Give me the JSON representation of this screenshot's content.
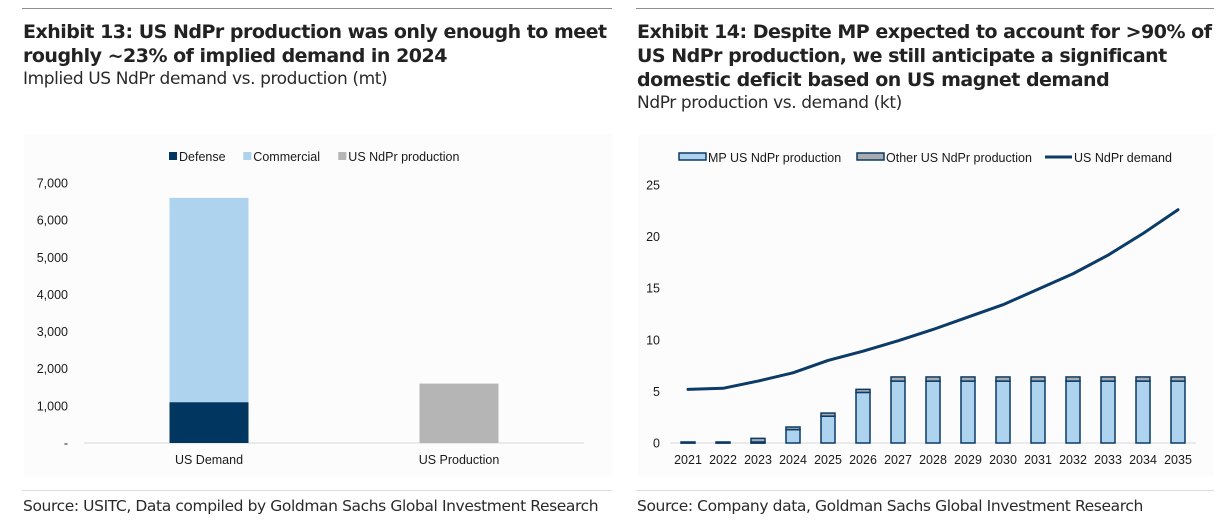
{
  "exhibits": [
    {
      "title": "Exhibit 13: US NdPr production was only enough to meet roughly ~23% of implied demand in 2024",
      "subtitle": "Implied US NdPr demand vs. production (mt)",
      "source": "Source: USITC, Data compiled by Goldman Sachs Global Investment Research"
    },
    {
      "title": "Exhibit 14: Despite MP expected to account for >90% of US NdPr production, we still anticipate a significant domestic deficit based on US magnet demand",
      "subtitle": "NdPr production vs. demand (kt)",
      "source": "Source: Company data, Goldman Sachs Global Investment Research"
    }
  ],
  "chart_data": [
    {
      "type": "bar",
      "stacked": true,
      "title": "Implied US NdPr demand vs. production (mt)",
      "xlabel": "",
      "ylabel": "",
      "categories": [
        "US Demand",
        "US Production"
      ],
      "series": [
        {
          "name": "Defense",
          "color": "#00365f",
          "values": [
            1100,
            0
          ]
        },
        {
          "name": "Commercial",
          "color": "#aed3ef",
          "values": [
            5500,
            0
          ]
        },
        {
          "name": "US NdPr production",
          "color": "#b5b5b5",
          "values": [
            0,
            1600
          ]
        }
      ],
      "ylim": [
        0,
        7000
      ],
      "yticks": [
        0,
        1000,
        2000,
        3000,
        4000,
        5000,
        6000,
        7000
      ],
      "ytick_labels": [
        "-",
        "1,000",
        "2,000",
        "3,000",
        "4,000",
        "5,000",
        "6,000",
        "7,000"
      ],
      "grid": false,
      "legend": "top-center"
    },
    {
      "type": "bar",
      "stacked": true,
      "title": "NdPr production vs. demand (kt)",
      "xlabel": "",
      "ylabel": "",
      "categories": [
        "2021",
        "2022",
        "2023",
        "2024",
        "2025",
        "2026",
        "2027",
        "2028",
        "2029",
        "2030",
        "2031",
        "2032",
        "2033",
        "2034",
        "2035"
      ],
      "series": [
        {
          "name": "MP US NdPr production",
          "kind": "bar",
          "color": "#aed3ef",
          "edge": "#0b3b66",
          "values": [
            0.1,
            0.0,
            0.1,
            1.3,
            2.6,
            4.9,
            6.0,
            6.0,
            6.0,
            6.0,
            6.0,
            6.0,
            6.0,
            6.0,
            6.0
          ]
        },
        {
          "name": "Other US NdPr production",
          "kind": "bar",
          "color": "#a9abae",
          "edge": "#0b3b66",
          "values": [
            0.0,
            0.1,
            0.35,
            0.25,
            0.3,
            0.3,
            0.4,
            0.4,
            0.4,
            0.4,
            0.4,
            0.4,
            0.4,
            0.4,
            0.4
          ]
        },
        {
          "name": "US NdPr demand",
          "kind": "line",
          "color": "#0b3b66",
          "values": [
            5.2,
            5.3,
            6.0,
            6.8,
            8.0,
            8.9,
            9.9,
            11.0,
            12.2,
            13.4,
            14.9,
            16.4,
            18.2,
            20.3,
            22.6
          ]
        }
      ],
      "ylim": [
        0,
        25
      ],
      "yticks": [
        0,
        5,
        10,
        15,
        20,
        25
      ],
      "ytick_labels": [
        "0",
        "5",
        "10",
        "15",
        "20",
        "25"
      ],
      "grid": false,
      "legend": "top-center"
    }
  ]
}
